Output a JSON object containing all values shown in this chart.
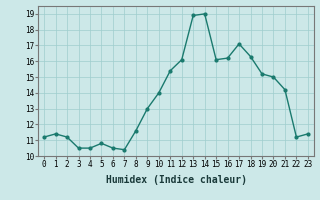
{
  "x": [
    0,
    1,
    2,
    3,
    4,
    5,
    6,
    7,
    8,
    9,
    10,
    11,
    12,
    13,
    14,
    15,
    16,
    17,
    18,
    19,
    20,
    21,
    22,
    23
  ],
  "y": [
    11.2,
    11.4,
    11.2,
    10.5,
    10.5,
    10.8,
    10.5,
    10.4,
    11.6,
    13.0,
    14.0,
    15.4,
    16.1,
    18.9,
    19.0,
    16.1,
    16.2,
    17.1,
    16.3,
    15.2,
    15.0,
    14.2,
    11.2,
    11.4
  ],
  "line_color": "#1a7a6e",
  "bg_color": "#cce8e8",
  "grid_color": "#9fcece",
  "xlabel": "Humidex (Indice chaleur)",
  "xlim": [
    -0.5,
    23.5
  ],
  "ylim": [
    10,
    19.5
  ],
  "yticks": [
    10,
    11,
    12,
    13,
    14,
    15,
    16,
    17,
    18,
    19
  ],
  "xticks": [
    0,
    1,
    2,
    3,
    4,
    5,
    6,
    7,
    8,
    9,
    10,
    11,
    12,
    13,
    14,
    15,
    16,
    17,
    18,
    19,
    20,
    21,
    22,
    23
  ],
  "marker_size": 2.0,
  "line_width": 1.0,
  "xlabel_fontsize": 7,
  "tick_fontsize": 5.5
}
